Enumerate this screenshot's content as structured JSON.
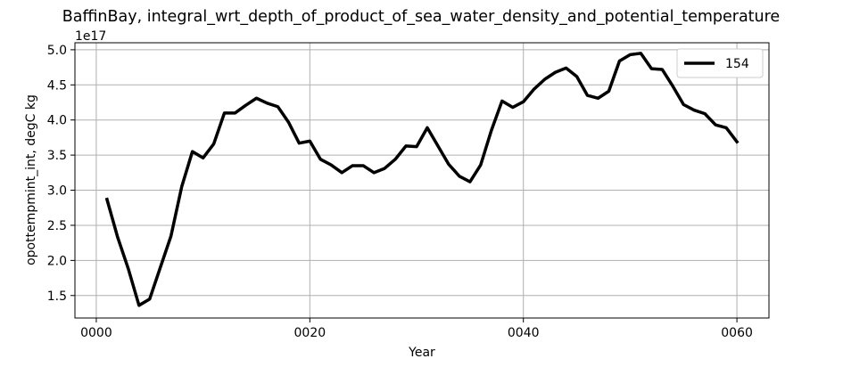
{
  "chart_data": {
    "type": "line",
    "title": "BaffinBay, integral_wrt_depth_of_product_of_sea_water_density_and_potential_temperature",
    "xlabel": "Year",
    "ylabel": "opottempmint_int, degC kg",
    "y_offset_label": "1e17",
    "xlim": [
      -2,
      63
    ],
    "ylim": [
      1.18,
      5.1
    ],
    "grid": true,
    "legend_position": "top-right",
    "x_ticks": [
      0,
      20,
      40,
      60
    ],
    "x_tick_labels": [
      "0000",
      "0020",
      "0040",
      "0060"
    ],
    "y_ticks": [
      1.5,
      2.0,
      2.5,
      3.0,
      3.5,
      4.0,
      4.5,
      5.0
    ],
    "y_tick_labels": [
      "1.5",
      "2.0",
      "2.5",
      "3.0",
      "3.5",
      "4.0",
      "4.5",
      "5.0"
    ],
    "series": [
      {
        "name": "154",
        "color": "#000000",
        "x": [
          1,
          2,
          3,
          4,
          5,
          6,
          7,
          8,
          9,
          10,
          11,
          12,
          13,
          14,
          15,
          16,
          17,
          18,
          19,
          20,
          21,
          22,
          23,
          24,
          25,
          26,
          27,
          28,
          29,
          30,
          31,
          32,
          33,
          34,
          35,
          36,
          37,
          38,
          39,
          40,
          41,
          42,
          43,
          44,
          45,
          46,
          47,
          48,
          49,
          50,
          51,
          52,
          53,
          54,
          55,
          56,
          57,
          58,
          59,
          60
        ],
        "values": [
          2.87,
          2.33,
          1.88,
          1.36,
          1.45,
          1.9,
          2.35,
          3.05,
          3.55,
          3.46,
          3.66,
          4.1,
          4.1,
          4.21,
          4.31,
          4.24,
          4.19,
          3.97,
          3.67,
          3.7,
          3.44,
          3.36,
          3.25,
          3.35,
          3.35,
          3.25,
          3.31,
          3.44,
          3.63,
          3.62,
          3.89,
          3.63,
          3.37,
          3.2,
          3.12,
          3.36,
          3.85,
          4.27,
          4.18,
          4.26,
          4.44,
          4.58,
          4.68,
          4.74,
          4.62,
          4.35,
          4.31,
          4.41,
          4.84,
          4.93,
          4.95,
          4.73,
          4.72,
          4.48,
          4.22,
          4.14,
          4.09,
          3.93,
          3.89,
          3.69
        ]
      }
    ]
  }
}
